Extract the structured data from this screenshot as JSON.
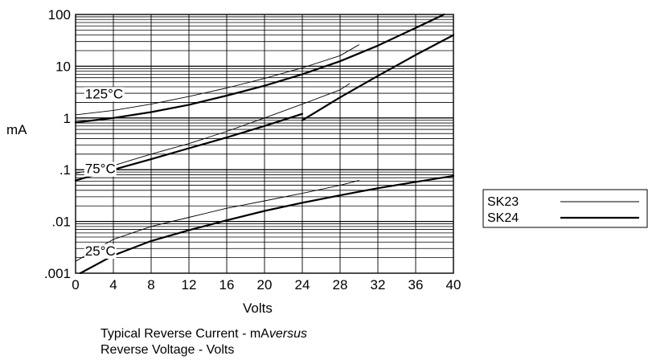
{
  "chart_data": {
    "type": "line",
    "ylabel": "mA",
    "xlabel": "Volts",
    "x_ticks": [
      0,
      4,
      8,
      12,
      16,
      20,
      24,
      28,
      32,
      36,
      40
    ],
    "y_tick_labels": [
      "100",
      "10",
      "1",
      ".1",
      ".01",
      ".001"
    ],
    "y_tick_values": [
      100,
      10,
      1,
      0.1,
      0.01,
      0.001
    ],
    "xlim": [
      0,
      40
    ],
    "ylim": [
      0.001,
      100
    ],
    "y_scale": "log",
    "grid": true,
    "legend_placement": "right",
    "temperature_labels": [
      {
        "text": "125°C",
        "x": 1,
        "y": 2.4
      },
      {
        "text": "75°C",
        "x": 1,
        "y": 0.085
      },
      {
        "text": "25°C",
        "x": 1,
        "y": 0.0022
      }
    ],
    "series": [
      {
        "name": "SK23",
        "temp": "125°C",
        "style": "thin",
        "x": [
          0,
          4,
          8,
          12,
          16,
          20,
          24,
          28,
          30
        ],
        "y": [
          1.15,
          1.4,
          1.85,
          2.6,
          3.8,
          5.8,
          9.3,
          16,
          26
        ]
      },
      {
        "name": "SK24",
        "temp": "125°C",
        "style": "thick",
        "x": [
          0,
          4,
          8,
          12,
          16,
          20,
          24,
          28,
          32,
          36,
          39
        ],
        "y": [
          0.82,
          1.0,
          1.3,
          1.8,
          2.7,
          4.2,
          7,
          12.5,
          25,
          55,
          100
        ]
      },
      {
        "name": "SK24",
        "temp": "125°C",
        "style": "thick",
        "x": [
          24,
          28,
          32,
          36,
          40
        ],
        "y": [
          0.9,
          2.5,
          6.5,
          16.5,
          40
        ]
      },
      {
        "name": "SK23",
        "temp": "75°C",
        "style": "thin",
        "x": [
          0,
          4,
          8,
          12,
          16,
          20,
          24,
          28,
          29
        ],
        "y": [
          0.085,
          0.12,
          0.2,
          0.32,
          0.55,
          1.0,
          1.85,
          3.5,
          4.6
        ]
      },
      {
        "name": "SK24",
        "temp": "75°C",
        "style": "thick",
        "x": [
          0,
          4,
          8,
          12,
          16,
          20,
          24
        ],
        "y": [
          0.062,
          0.1,
          0.16,
          0.26,
          0.42,
          0.7,
          1.2
        ]
      },
      {
        "name": "SK23",
        "temp": "25°C",
        "style": "thin",
        "x": [
          0,
          4,
          8,
          12,
          16,
          20,
          24,
          28,
          30
        ],
        "y": [
          0.0017,
          0.0045,
          0.008,
          0.012,
          0.018,
          0.025,
          0.035,
          0.05,
          0.062
        ]
      },
      {
        "name": "SK24",
        "temp": "25°C",
        "style": "thick",
        "x": [
          0.5,
          4,
          8,
          12,
          16,
          20,
          24,
          28,
          32,
          36,
          40
        ],
        "y": [
          0.001,
          0.0022,
          0.0042,
          0.0068,
          0.0105,
          0.016,
          0.023,
          0.032,
          0.044,
          0.058,
          0.076
        ]
      }
    ],
    "legend": [
      {
        "name": "SK23",
        "style": "thin"
      },
      {
        "name": "SK24",
        "style": "thick"
      }
    ]
  },
  "caption": {
    "line1_prefix": "Typical Reverse Current - mA",
    "line1_italic": "versus",
    "line2": "Reverse Voltage - Volts"
  }
}
